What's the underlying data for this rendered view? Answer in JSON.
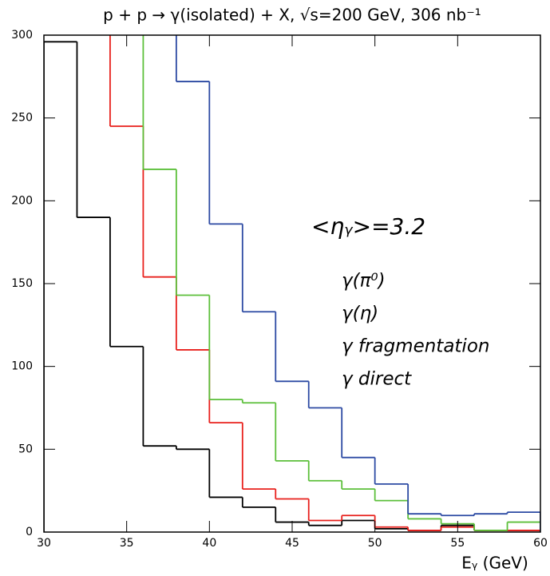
{
  "chart_data": {
    "type": "histogram",
    "title": "p + p → γ(isolated) + X, √s=200 GeV, 306 nb⁻¹",
    "x_label": "Eᵧ (GeV)",
    "annotation": "<ηᵧ>=3.2",
    "bins": [
      30,
      32,
      34,
      36,
      38,
      40,
      42,
      44,
      46,
      48,
      50,
      52,
      54,
      56,
      58,
      60
    ],
    "series": [
      {
        "name": "γ(π⁰)",
        "color": "#000000",
        "values": [
          296,
          190,
          112,
          52,
          50,
          21,
          15,
          6,
          4,
          7,
          2,
          1,
          4,
          1,
          1
        ]
      },
      {
        "name": "γ(η)",
        "color": "#e8201c",
        "values": [
          null,
          null,
          245,
          154,
          110,
          66,
          26,
          20,
          7,
          10,
          3,
          1,
          3,
          1,
          1
        ]
      },
      {
        "name": "γ fragmentation",
        "color": "#5cbf3a",
        "values": [
          null,
          null,
          null,
          219,
          143,
          80,
          78,
          43,
          31,
          26,
          19,
          8,
          5,
          1,
          6
        ]
      },
      {
        "name": "γ direct",
        "color": "#2c4aa3",
        "values": [
          null,
          null,
          null,
          null,
          272,
          186,
          133,
          91,
          75,
          45,
          29,
          11,
          10,
          11,
          12
        ]
      }
    ],
    "xlim": [
      30,
      60
    ],
    "ylim": [
      0,
      300
    ],
    "xticks": [
      30,
      35,
      40,
      45,
      50,
      55,
      60
    ],
    "yticks": [
      0,
      50,
      100,
      150,
      200,
      250,
      300
    ]
  }
}
